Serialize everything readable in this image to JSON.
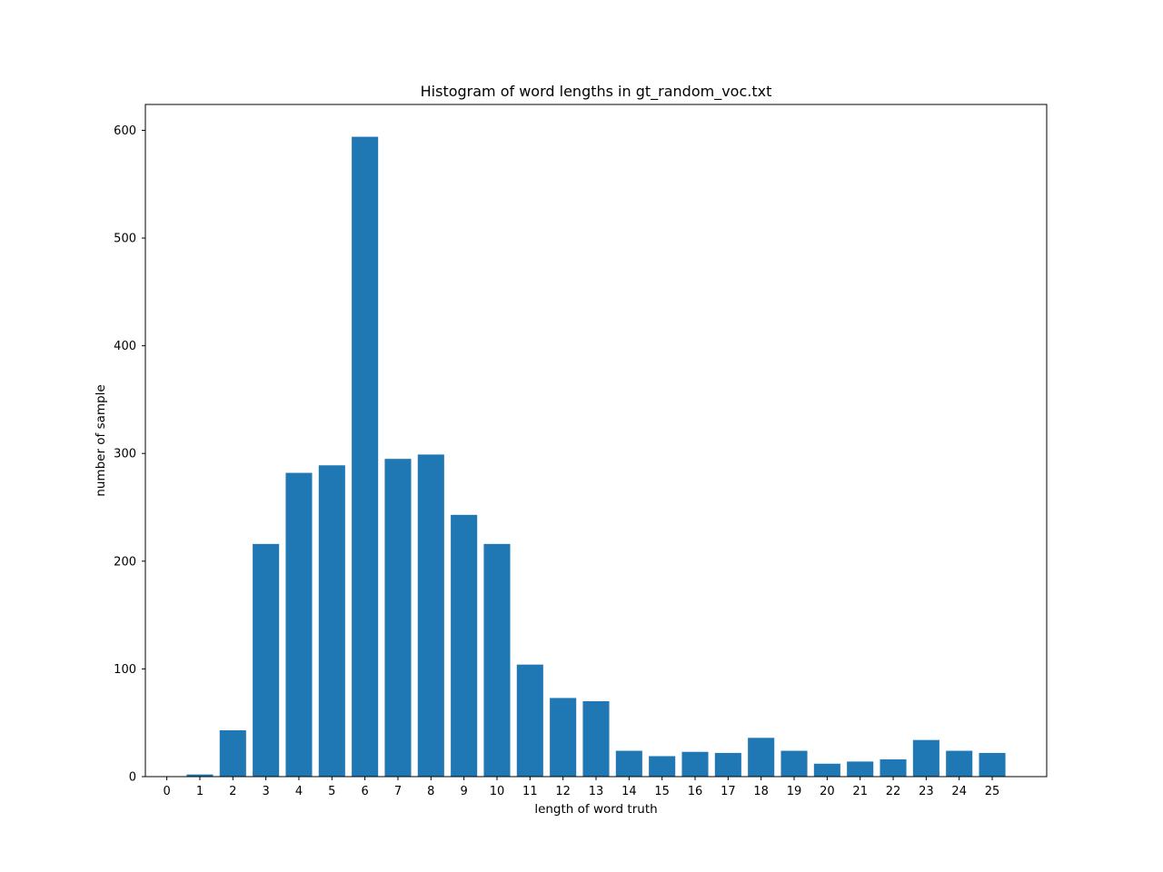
{
  "chart_data": {
    "type": "bar",
    "title": "Histogram of word lengths in gt_random_voc.txt",
    "xlabel": "length of word truth",
    "ylabel": "number of sample",
    "categories": [
      "0",
      "1",
      "2",
      "3",
      "4",
      "5",
      "6",
      "7",
      "8",
      "9",
      "10",
      "11",
      "12",
      "13",
      "14",
      "15",
      "16",
      "17",
      "18",
      "19",
      "20",
      "21",
      "22",
      "23",
      "24",
      "25"
    ],
    "x": [
      0,
      1,
      2,
      3,
      4,
      5,
      6,
      7,
      8,
      9,
      10,
      11,
      12,
      13,
      14,
      15,
      16,
      17,
      18,
      19,
      20,
      21,
      22,
      23,
      24,
      25
    ],
    "values": [
      0,
      2,
      43,
      216,
      282,
      289,
      594,
      295,
      299,
      243,
      216,
      104,
      73,
      70,
      24,
      19,
      23,
      22,
      36,
      24,
      12,
      14,
      16,
      34,
      24,
      22
    ],
    "xlim": [
      -0.65,
      26.65
    ],
    "ylim": [
      0,
      624
    ],
    "yticks": [
      0,
      100,
      200,
      300,
      400,
      500,
      600
    ],
    "grid": false,
    "legend": "none",
    "bar_color": "#1f77b4"
  }
}
